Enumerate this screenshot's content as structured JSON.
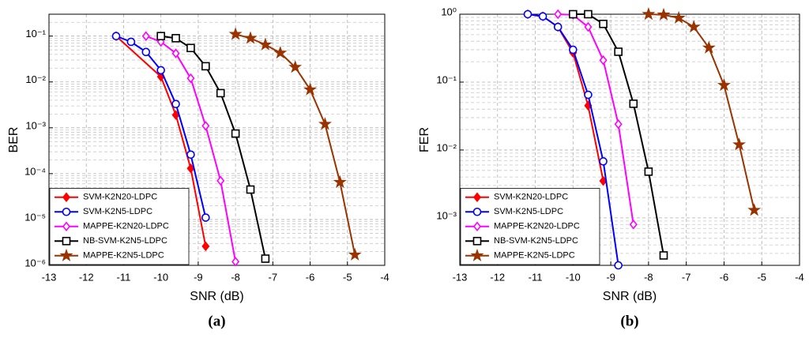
{
  "chart_data": [
    {
      "type": "line",
      "label": "(a)",
      "xlabel": "SNR (dB)",
      "ylabel": "BER",
      "log_y": true,
      "grid": true,
      "legend": "lower left",
      "xlim": [
        -13,
        -4
      ],
      "xticks": [
        -13,
        -12,
        -11,
        -10,
        -9,
        -8,
        -7,
        -6,
        -5,
        -4
      ],
      "ylim": [
        1e-06,
        0.3
      ],
      "yticks": [
        {
          "value": 1e-06,
          "label": "10⁻⁶"
        },
        {
          "value": 1e-05,
          "label": "10⁻⁵"
        },
        {
          "value": 0.0001,
          "label": "10⁻⁴"
        },
        {
          "value": 0.001,
          "label": "10⁻³"
        },
        {
          "value": 0.01,
          "label": "10⁻²"
        },
        {
          "value": 0.1,
          "label": "10⁻¹"
        }
      ],
      "series": [
        {
          "name": "SVM-K2N20-LDPC",
          "color": "#ff0000",
          "marker": "diamond-filled",
          "x": [
            -11.2,
            -10,
            -9.6,
            -9.2,
            -8.8
          ],
          "values": [
            0.1,
            0.013,
            0.0019,
            0.00013,
            2.6e-06
          ]
        },
        {
          "name": "SVM-K2N5-LDPC",
          "color": "#0000ff",
          "marker": "circle",
          "x": [
            -11.2,
            -10.8,
            -10.4,
            -10,
            -9.6,
            -9.2,
            -8.8
          ],
          "values": [
            0.1,
            0.075,
            0.045,
            0.018,
            0.0033,
            0.00026,
            1.1e-05
          ]
        },
        {
          "name": "MAPPE-K2N20-LDPC",
          "color": "#ff00ff",
          "marker": "diamond",
          "x": [
            -10.4,
            -10,
            -9.6,
            -9.2,
            -8.8,
            -8.4,
            -8
          ],
          "values": [
            0.1,
            0.075,
            0.042,
            0.012,
            0.0011,
            7e-05,
            1.2e-06
          ]
        },
        {
          "name": "NB-SVM-K2N5-LDPC",
          "color": "#000000",
          "marker": "square",
          "x": [
            -10,
            -9.6,
            -9.2,
            -8.8,
            -8.4,
            -8,
            -7.6,
            -7.2
          ],
          "values": [
            0.1,
            0.09,
            0.055,
            0.022,
            0.0057,
            0.00075,
            4.5e-05,
            1.4e-06
          ]
        },
        {
          "name": "MAPPE-K2N5-LDPC",
          "color": "#993300",
          "marker": "star",
          "x": [
            -8,
            -7.6,
            -7.2,
            -6.8,
            -6.4,
            -6,
            -5.6,
            -5.2,
            -4.8
          ],
          "values": [
            0.11,
            0.09,
            0.065,
            0.043,
            0.021,
            0.0068,
            0.0012,
            6.5e-05,
            1.7e-06
          ]
        }
      ]
    },
    {
      "type": "line",
      "label": "(b)",
      "xlabel": "SNR (dB)",
      "ylabel": "FER",
      "log_y": true,
      "grid": true,
      "legend": "lower left",
      "xlim": [
        -13,
        -4
      ],
      "xticks": [
        -13,
        -12,
        -11,
        -10,
        -9,
        -8,
        -7,
        -6,
        -5,
        -4
      ],
      "ylim": [
        0.0002,
        1
      ],
      "yticks": [
        {
          "value": 0.001,
          "label": "10⁻³"
        },
        {
          "value": 0.01,
          "label": "10⁻²"
        },
        {
          "value": 0.1,
          "label": "10⁻¹"
        },
        {
          "value": 1,
          "label": "10⁰"
        }
      ],
      "series": [
        {
          "name": "SVM-K2N20-LDPC",
          "color": "#ff0000",
          "marker": "diamond-filled",
          "x": [
            -11.2,
            -10.8,
            -10.4,
            -10,
            -9.6,
            -9.2
          ],
          "values": [
            1,
            0.93,
            0.65,
            0.27,
            0.045,
            0.0035
          ]
        },
        {
          "name": "SVM-K2N5-LDPC",
          "color": "#0000ff",
          "marker": "circle",
          "x": [
            -11.2,
            -10.8,
            -10.4,
            -10,
            -9.6,
            -9.2,
            -8.8
          ],
          "values": [
            1,
            0.93,
            0.65,
            0.3,
            0.065,
            0.0068,
            0.0002
          ]
        },
        {
          "name": "MAPPE-K2N20-LDPC",
          "color": "#ff00ff",
          "marker": "diamond",
          "x": [
            -10.4,
            -10,
            -9.6,
            -9.2,
            -8.8,
            -8.4
          ],
          "values": [
            1,
            0.98,
            0.65,
            0.21,
            0.024,
            0.0008
          ]
        },
        {
          "name": "NB-SVM-K2N5-LDPC",
          "color": "#000000",
          "marker": "square",
          "x": [
            -10,
            -9.6,
            -9.2,
            -8.8,
            -8.4,
            -8,
            -7.6
          ],
          "values": [
            1,
            1,
            0.72,
            0.28,
            0.048,
            0.0048,
            0.00028
          ]
        },
        {
          "name": "MAPPE-K2N5-LDPC",
          "color": "#993300",
          "marker": "star",
          "x": [
            -8,
            -7.6,
            -7.2,
            -6.8,
            -6.4,
            -6,
            -5.6,
            -5.2
          ],
          "values": [
            1,
            0.98,
            0.88,
            0.65,
            0.32,
            0.09,
            0.012,
            0.0013
          ]
        }
      ]
    }
  ]
}
